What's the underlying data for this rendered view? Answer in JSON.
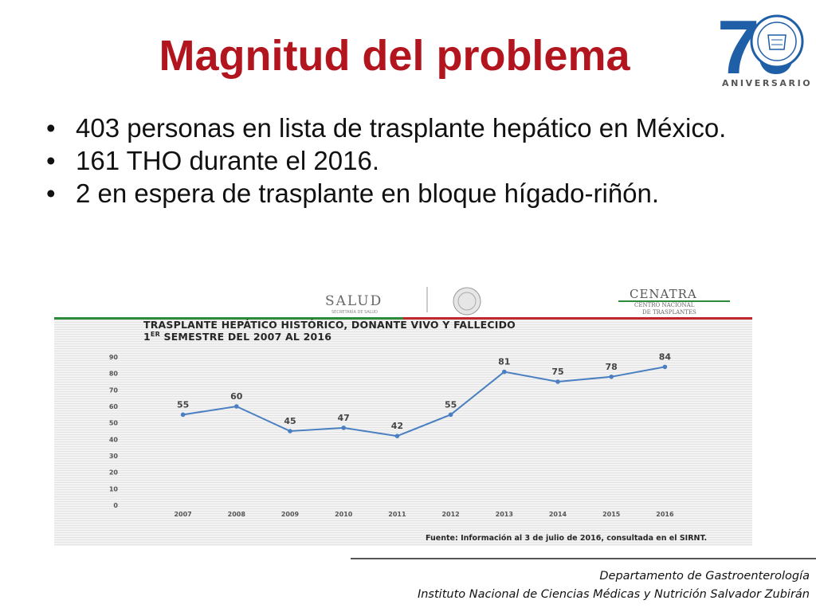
{
  "slide": {
    "title": "Magnitud del problema",
    "bullets": [
      "403 personas en lista de trasplante hepático en México.",
      "161 THO durante el 2016.",
      "2 en espera de trasplante en bloque hígado-riñón."
    ]
  },
  "logo": {
    "number": "70",
    "text": "ANIVERSARIO",
    "color": "#1f5fa8"
  },
  "chart_header": {
    "salud": "SALUD",
    "salud_sub": "SECRETARÍA DE SALUD",
    "cenatra": "CENATRA",
    "cenatra_sub1": "CENTRO NACIONAL",
    "cenatra_sub2": "DE TRASPLANTES"
  },
  "chart_data": {
    "type": "line",
    "title_line1": "TRASPLANTE HEPÁTICO HISTÓRICO, DONANTE VIVO Y FALLECIDO",
    "title_line2_a": "1",
    "title_line2_sup": "ER",
    "title_line2_b": " SEMESTRE DEL 2007 AL 2016",
    "categories": [
      "2007",
      "2008",
      "2009",
      "2010",
      "2011",
      "2012",
      "2013",
      "2014",
      "2015",
      "2016"
    ],
    "values": [
      55,
      60,
      45,
      47,
      42,
      55,
      81,
      75,
      78,
      84
    ],
    "ylim": [
      0,
      90
    ],
    "yticks": [
      0,
      10,
      20,
      30,
      40,
      50,
      60,
      70,
      80,
      90
    ],
    "grid": false,
    "line_color": "#4a7fc1",
    "source": "Fuente: Información al 3 de julio de 2016, consultada en el SIRNT."
  },
  "footer": {
    "department": "Departamento de Gastroenterología",
    "institute": "Instituto Nacional de Ciencias Médicas y Nutrición Salvador Zubirán"
  },
  "colors": {
    "title": "#b3151e",
    "green_bar": "#2e8b3a",
    "red_bar": "#c0282d"
  }
}
